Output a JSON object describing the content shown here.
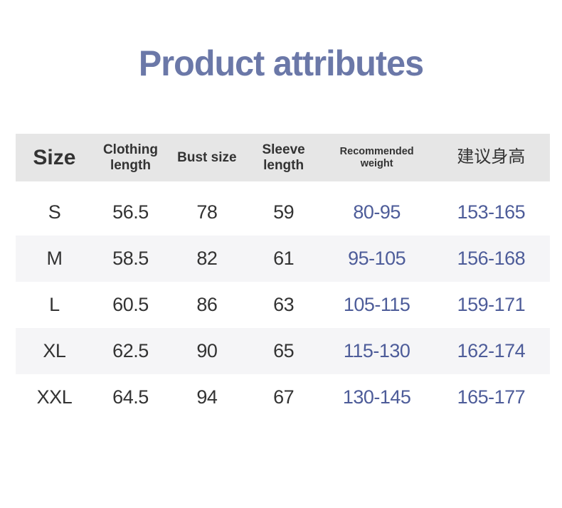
{
  "page": {
    "title": "Product attributes"
  },
  "table": {
    "columns": [
      {
        "key": "size",
        "label": "Size"
      },
      {
        "key": "clothing_length",
        "label": "Clothing\nlength"
      },
      {
        "key": "bust_size",
        "label": "Bust size"
      },
      {
        "key": "sleeve_length",
        "label": "Sleeve\nlength"
      },
      {
        "key": "recommended_weight",
        "label": "Recommended\nweight"
      },
      {
        "key": "recommended_height",
        "label": "建议身高"
      }
    ],
    "rows": [
      {
        "size": "S",
        "clothing_length": "56.5",
        "bust_size": "78",
        "sleeve_length": "59",
        "recommended_weight": "80-95",
        "recommended_height": "153-165"
      },
      {
        "size": "M",
        "clothing_length": "58.5",
        "bust_size": "82",
        "sleeve_length": "61",
        "recommended_weight": "95-105",
        "recommended_height": "156-168"
      },
      {
        "size": "L",
        "clothing_length": "60.5",
        "bust_size": "86",
        "sleeve_length": "63",
        "recommended_weight": "105-115",
        "recommended_height": "159-171"
      },
      {
        "size": "XL",
        "clothing_length": "62.5",
        "bust_size": "90",
        "sleeve_length": "65",
        "recommended_weight": "115-130",
        "recommended_height": "162-174"
      },
      {
        "size": "XXL",
        "clothing_length": "64.5",
        "bust_size": "94",
        "sleeve_length": "67",
        "recommended_weight": "130-145",
        "recommended_height": "165-177"
      }
    ]
  },
  "colors": {
    "title_color": "#6B78A8",
    "header_bg": "#E6E6E6",
    "header_text": "#333333",
    "cell_text": "#333333",
    "accent_text": "#4D5C99",
    "stripe_bg": "#F5F5F7"
  }
}
